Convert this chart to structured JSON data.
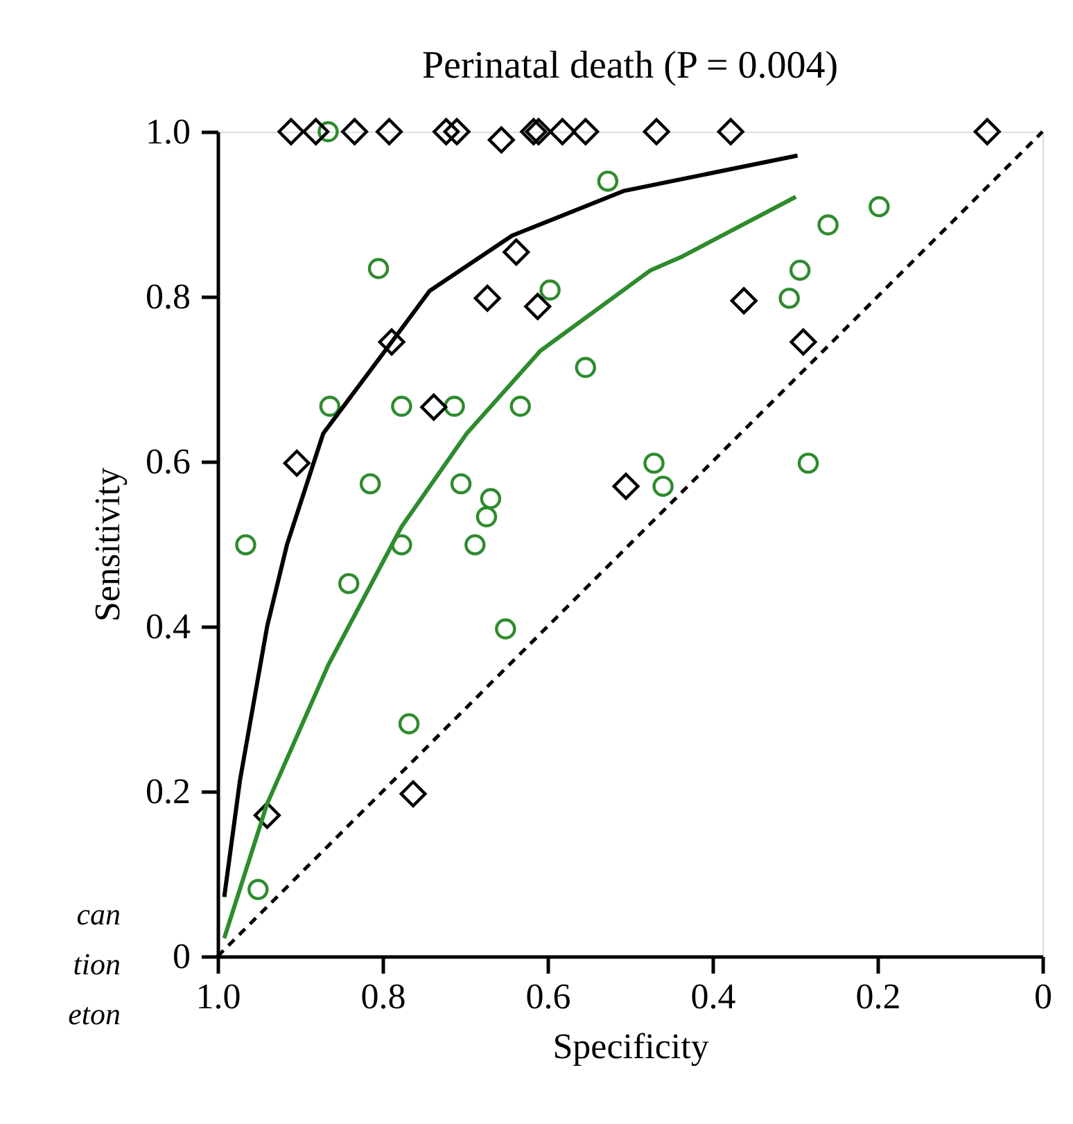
{
  "chart_data": {
    "type": "scatter",
    "title": "Perinatal death (P = 0.004)",
    "xlabel": "Specificity",
    "ylabel": "Sensitivity",
    "xlim": [
      1.0,
      0
    ],
    "ylim": [
      0,
      1.0
    ],
    "xticks": [
      {
        "value": 1.0,
        "label": "1.0"
      },
      0.8,
      0.6,
      0.4,
      0.2,
      0
    ],
    "yticks": [
      0,
      0.2,
      0.4,
      0.6,
      0.8,
      {
        "value": 1.0,
        "label": "1.0"
      }
    ],
    "grid": false,
    "annotations": [
      "can",
      "tion",
      "eton"
    ],
    "series": [
      {
        "marker": "circle",
        "color": "#2e8b2e",
        "x": [
          0.866,
          0.527,
          0.805,
          0.597,
          0.554,
          0.864,
          0.777,
          0.713,
          0.633,
          0.815,
          0.705,
          0.669,
          0.674,
          0.966,
          0.777,
          0.688,
          0.841,
          0.651,
          0.768,
          0.951,
          0.26,
          0.198,
          0.294,
          0.307,
          0.471,
          0.46,
          0.284
        ],
        "values": [
          1.0,
          0.94,
          0.834,
          0.808,
          0.714,
          0.667,
          0.667,
          0.667,
          0.667,
          0.573,
          0.573,
          0.555,
          0.533,
          0.499,
          0.499,
          0.499,
          0.452,
          0.397,
          0.282,
          0.081,
          0.887,
          0.909,
          0.832,
          0.798,
          0.598,
          0.57,
          0.598
        ]
      },
      {
        "marker": "diamond",
        "color": "#000000",
        "x": [
          0.911,
          0.881,
          0.834,
          0.792,
          0.723,
          0.71,
          0.656,
          0.617,
          0.611,
          0.582,
          0.554,
          0.468,
          0.378,
          0.067,
          0.789,
          0.638,
          0.673,
          0.612,
          0.738,
          0.904,
          0.362,
          0.29,
          0.505,
          0.94,
          0.763
        ],
        "values": [
          1.0,
          1.0,
          1.0,
          1.0,
          1.0,
          1.0,
          0.99,
          1.0,
          1.0,
          1.0,
          1.0,
          1.0,
          1.0,
          1.0,
          0.745,
          0.854,
          0.798,
          0.788,
          0.666,
          0.598,
          0.795,
          0.745,
          0.57,
          0.171,
          0.197
        ]
      },
      {
        "type": "line",
        "line_style": "solid",
        "color": "#000000",
        "x": [
          0.992,
          0.973,
          0.94,
          0.916,
          0.872,
          0.789,
          0.743,
          0.643,
          0.508,
          0.297
        ],
        "values": [
          0.072,
          0.213,
          0.4,
          0.499,
          0.634,
          0.745,
          0.807,
          0.874,
          0.928,
          0.971
        ]
      },
      {
        "type": "line",
        "line_style": "solid",
        "color": "#2e8b2e",
        "x": [
          0.992,
          0.94,
          0.866,
          0.777,
          0.698,
          0.609,
          0.475,
          0.436,
          0.299
        ],
        "values": [
          0.022,
          0.185,
          0.353,
          0.521,
          0.634,
          0.734,
          0.832,
          0.849,
          0.921
        ]
      },
      {
        "type": "line",
        "line_style": "dashed",
        "color": "#000000",
        "x": [
          1.0,
          0.0
        ],
        "values": [
          0.0,
          1.0
        ]
      }
    ]
  }
}
